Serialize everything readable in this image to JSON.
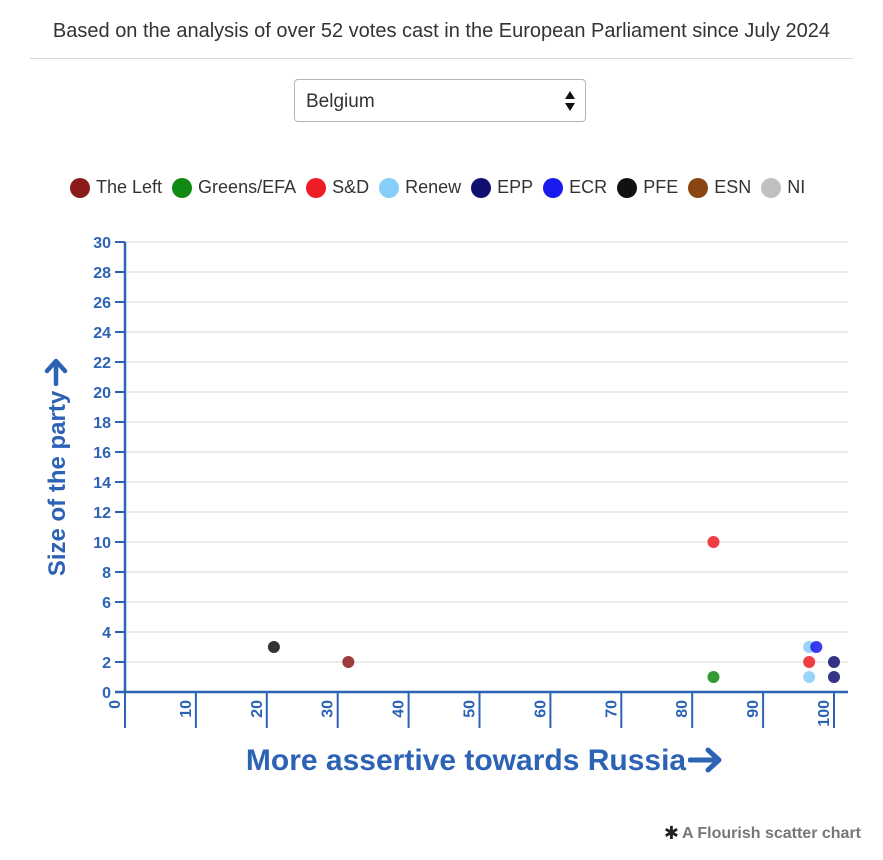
{
  "header": {
    "subtitle": "Based on the analysis of over 52 votes cast in the European Parliament since July 2024"
  },
  "filter": {
    "selected_country": "Belgium"
  },
  "chart_data": {
    "type": "scatter",
    "title": "",
    "subtitle": "Based on the analysis of over 52 votes cast in the European Parliament since July 2024",
    "xlabel": "More assertive towards Russia",
    "ylabel": "Size of the party",
    "xlim": [
      0,
      100
    ],
    "ylim": [
      0,
      30
    ],
    "xticks": [
      "0",
      "10",
      "20",
      "30",
      "40",
      "50",
      "60",
      "70",
      "80",
      "90",
      "100"
    ],
    "yticks": [
      "0",
      "2",
      "4",
      "6",
      "8",
      "10",
      "12",
      "14",
      "16",
      "18",
      "20",
      "22",
      "24",
      "26",
      "28",
      "30"
    ],
    "grid": true,
    "legend_position": "top",
    "legend": [
      {
        "name": "The Left",
        "color": "#8b1a1a"
      },
      {
        "name": "Greens/EFA",
        "color": "#118a11"
      },
      {
        "name": "S&D",
        "color": "#ee1c25"
      },
      {
        "name": "Renew",
        "color": "#87cefa"
      },
      {
        "name": "EPP",
        "color": "#101070"
      },
      {
        "name": "ECR",
        "color": "#1a1aee"
      },
      {
        "name": "PFE",
        "color": "#111111"
      },
      {
        "name": "ESN",
        "color": "#8b4513"
      },
      {
        "name": "NI",
        "color": "#c0c0c0"
      }
    ],
    "series": [
      {
        "name": "The Left",
        "color": "#8b1a1a",
        "points": [
          {
            "x": 31.5,
            "y": 2
          }
        ]
      },
      {
        "name": "Greens/EFA",
        "color": "#118a11",
        "points": [
          {
            "x": 83,
            "y": 1
          }
        ]
      },
      {
        "name": "S&D",
        "color": "#ee1c25",
        "points": [
          {
            "x": 83,
            "y": 10
          },
          {
            "x": 96.5,
            "y": 2
          }
        ]
      },
      {
        "name": "Renew",
        "color": "#87cefa",
        "points": [
          {
            "x": 96.5,
            "y": 3
          },
          {
            "x": 96.5,
            "y": 1
          }
        ]
      },
      {
        "name": "EPP",
        "color": "#101070",
        "points": [
          {
            "x": 100,
            "y": 2
          },
          {
            "x": 100,
            "y": 1
          }
        ]
      },
      {
        "name": "ECR",
        "color": "#1a1aee",
        "points": [
          {
            "x": 97.5,
            "y": 3
          }
        ]
      },
      {
        "name": "PFE",
        "color": "#111111",
        "points": [
          {
            "x": 21,
            "y": 3
          }
        ]
      },
      {
        "name": "ESN",
        "color": "#8b4513",
        "points": []
      },
      {
        "name": "NI",
        "color": "#c0c0c0",
        "points": []
      }
    ],
    "axis_color": "#2d63b5",
    "grid_color": "#e6e6e6"
  },
  "credit": {
    "icon": "asterisk-icon",
    "text": "A Flourish scatter chart"
  }
}
